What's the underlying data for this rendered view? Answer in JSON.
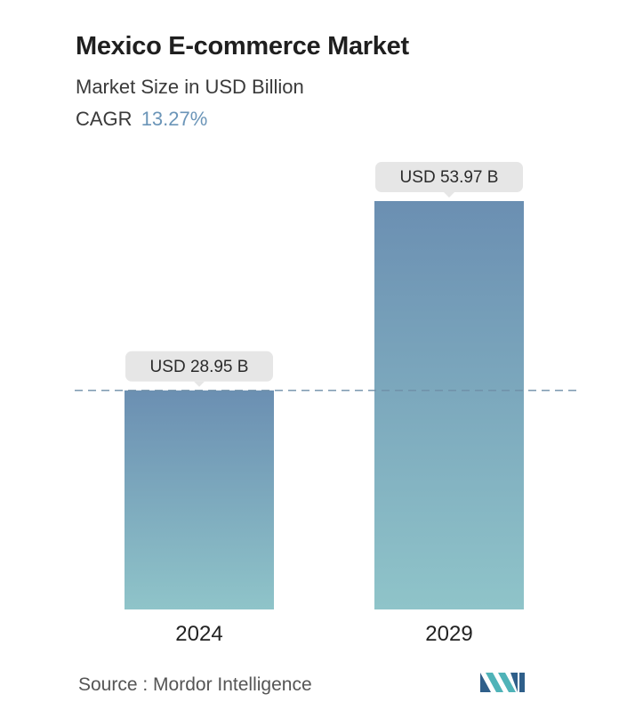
{
  "header": {
    "title": "Mexico E-commerce Market",
    "subtitle": "Market Size in USD Billion",
    "cagr_label": "CAGR",
    "cagr_value": "13.27%"
  },
  "chart_data": {
    "type": "bar",
    "categories": [
      "2024",
      "2029"
    ],
    "values": [
      28.95,
      53.97
    ],
    "value_labels": [
      "USD 28.95 B",
      "USD 53.97 B"
    ],
    "unit": "USD Billion",
    "reference_line": 28.95,
    "ylim": [
      0,
      53.97
    ],
    "grid": false,
    "legend": "none"
  },
  "footer": {
    "source": "Source :  Mordor Intelligence",
    "logo_icon": "mordor-intelligence-logo-icon"
  },
  "colors": {
    "bar_top": "#6b8fb2",
    "bar_bottom": "#8fc4c9",
    "label_bg": "#e6e6e6",
    "dashed_line": "#6f8fa8",
    "cagr_accent": "#6b95b8"
  }
}
